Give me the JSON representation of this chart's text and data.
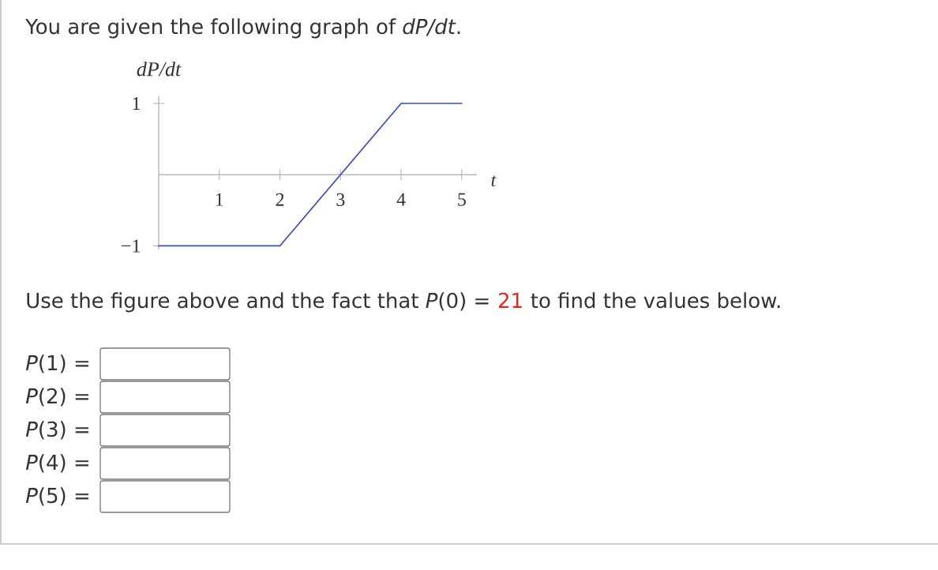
{
  "chart_data": {
    "type": "line",
    "title": "You are given the following graph of *dP/dt*.",
    "xlabel": "t",
    "ylabel": "dP/dt",
    "x": [
      0,
      2,
      4,
      5
    ],
    "series": [
      {
        "color": "#3b4cc0",
        "values": [
          -1,
          -1,
          1,
          1
        ]
      }
    ],
    "xlim": [
      0,
      5.25
    ],
    "ylim": [
      -1.05,
      1.1
    ],
    "xticks": [
      1,
      2,
      3,
      4,
      5
    ],
    "yticks": [
      {
        "value": -1,
        "label": "−1"
      },
      1
    ],
    "annotations": [
      "Use the figure above and the fact that *P*(0) =",
      "21",
      "to find the values below.",
      "*P*(1) =",
      "*P*(2) =",
      "*P*(3) =",
      "*P*(4) =",
      "*P*(5) ="
    ],
    "marker": "none",
    "line_style": "solid"
  }
}
